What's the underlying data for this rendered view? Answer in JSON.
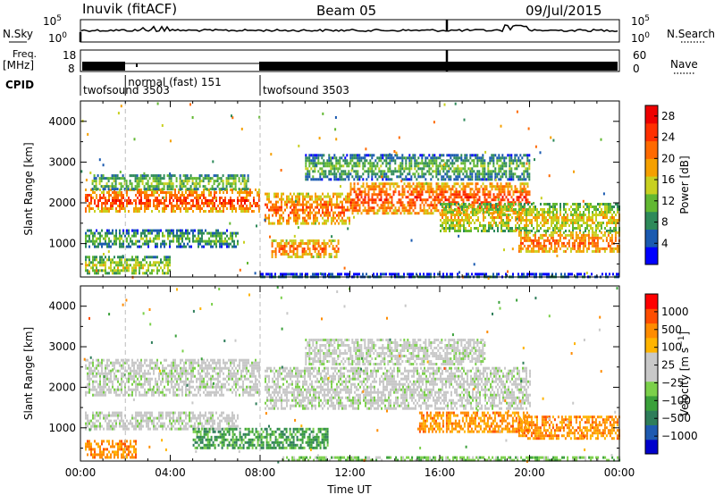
{
  "header": {
    "station": "Inuvik (fitACF)",
    "beam": "Beam 05",
    "date": "09/Jul/2015"
  },
  "strip_labels": {
    "nsky": "N.Sky",
    "nsearch": "N.Search",
    "freq": "Freq.",
    "freq_unit": "[MHz]",
    "nave": "Nave",
    "cpid": "CPID"
  },
  "strip_ticks": {
    "noise_left": [
      "10^5",
      "10^0"
    ],
    "noise_right": [
      "10^5",
      "10^0"
    ],
    "freq_left": [
      "18",
      "8"
    ],
    "nave_right": [
      "60",
      "0"
    ]
  },
  "cpid_segments": [
    {
      "label": "twofsound 3503",
      "start_hour": 0
    },
    {
      "label": "normal (fast) 151",
      "start_hour": 2
    },
    {
      "label": "twofsound 3503",
      "start_hour": 8
    }
  ],
  "colors": {
    "power_scale": [
      "#0000ff",
      "#1a5ab0",
      "#2e8a5a",
      "#62b832",
      "#c8d020",
      "#f5a000",
      "#ff6a00",
      "#ff3000",
      "#ee0000"
    ],
    "velocity_scale": [
      "#ff0000",
      "#ff4d00",
      "#ff8c00",
      "#ffb400",
      "#c8c8c8",
      "#c8c8c8",
      "#7bd04a",
      "#3aa03a",
      "#2e7d5a",
      "#1e5ab0",
      "#0000cc"
    ]
  },
  "chart_data": [
    {
      "type": "heatmap",
      "title": "",
      "xlabel": "",
      "ylabel": "Slant Range [km]",
      "xlim": [
        0,
        24
      ],
      "ylim": [
        180,
        4500
      ],
      "xticks": [
        "00:00",
        "04:00",
        "08:00",
        "12:00",
        "16:00",
        "20:00",
        "00:00"
      ],
      "yticks": [
        1000,
        2000,
        3000,
        4000
      ],
      "colorbar_label": "Power [dB]",
      "colorbar_ticks": [
        4,
        8,
        12,
        16,
        20,
        24,
        28
      ],
      "colorbar_range": [
        0,
        30
      ],
      "echo_bands": [
        {
          "t0": 0.2,
          "t1": 8.0,
          "r0": 1800,
          "r1": 2350,
          "level": 26
        },
        {
          "t0": 0.5,
          "t1": 7.5,
          "r0": 2350,
          "r1": 2700,
          "level": 14
        },
        {
          "t0": 8.2,
          "t1": 12.0,
          "r0": 1500,
          "r1": 2250,
          "level": 24
        },
        {
          "t0": 12.0,
          "t1": 20.0,
          "r0": 1750,
          "r1": 2500,
          "level": 26
        },
        {
          "t0": 16.0,
          "t1": 24.0,
          "r0": 1300,
          "r1": 2000,
          "level": 18
        },
        {
          "t0": 0.2,
          "t1": 7.0,
          "r0": 950,
          "r1": 1350,
          "level": 12
        },
        {
          "t0": 8.5,
          "t1": 11.5,
          "r0": 700,
          "r1": 1100,
          "level": 24
        },
        {
          "t0": 19.5,
          "t1": 24.0,
          "r0": 800,
          "r1": 1300,
          "level": 24
        },
        {
          "t0": 0.2,
          "t1": 4.0,
          "r0": 250,
          "r1": 700,
          "level": 16
        },
        {
          "t0": 8.0,
          "t1": 24.0,
          "r0": 180,
          "r1": 280,
          "level": 8
        },
        {
          "t0": 10.0,
          "t1": 20.0,
          "r0": 2600,
          "r1": 3200,
          "level": 12
        }
      ]
    },
    {
      "type": "heatmap",
      "title": "",
      "xlabel": "Time UT",
      "ylabel": "Slant Range [km]",
      "xlim": [
        0,
        24
      ],
      "ylim": [
        180,
        4500
      ],
      "xticks": [
        "00:00",
        "04:00",
        "08:00",
        "12:00",
        "16:00",
        "20:00",
        "00:00"
      ],
      "yticks": [
        1000,
        2000,
        3000,
        4000
      ],
      "colorbar_label": "Velocity [m s^-1]",
      "colorbar_ticks": [
        1000,
        500,
        100,
        25,
        -25,
        -100,
        -500,
        -1000
      ],
      "echo_bands": [
        {
          "t0": 0.2,
          "t1": 8.0,
          "r0": 1800,
          "r1": 2700,
          "class": "ground"
        },
        {
          "t0": 8.2,
          "t1": 20.0,
          "r0": 1500,
          "r1": 2500,
          "class": "ground"
        },
        {
          "t0": 10.0,
          "t1": 18.0,
          "r0": 2600,
          "r1": 3200,
          "class": "ground"
        },
        {
          "t0": 0.2,
          "t1": 7.0,
          "r0": 950,
          "r1": 1400,
          "class": "ground"
        },
        {
          "t0": 5.0,
          "t1": 11.0,
          "r0": 500,
          "r1": 1000,
          "class": "pos_mid"
        },
        {
          "t0": 15.0,
          "t1": 20.0,
          "r0": 900,
          "r1": 1400,
          "class": "neg_mid"
        },
        {
          "t0": 19.5,
          "t1": 24.0,
          "r0": 750,
          "r1": 1300,
          "class": "neg_mid"
        },
        {
          "t0": 0.2,
          "t1": 2.5,
          "r0": 250,
          "r1": 700,
          "class": "neg_mid"
        },
        {
          "t0": 9.0,
          "t1": 24.0,
          "r0": 180,
          "r1": 300,
          "class": "pos_low"
        }
      ]
    }
  ]
}
